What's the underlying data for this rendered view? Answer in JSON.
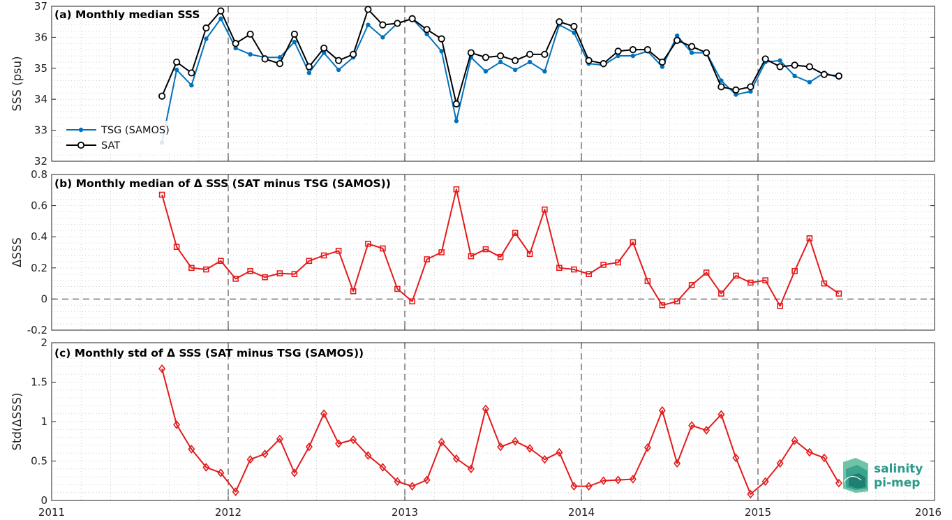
{
  "colors": {
    "tsg": "#0072BD",
    "sat": "#000000",
    "delta": "#E41A1C",
    "logo": "#2a9a8a"
  },
  "x_axis": {
    "ticks": [
      "2011",
      "2012",
      "2013",
      "2014",
      "2015",
      "2016"
    ]
  },
  "logo": {
    "line1": "salinity",
    "line2": "pi-mep"
  },
  "chart_data": [
    {
      "panel": "a",
      "type": "line",
      "title": "(a) Monthly median SSS",
      "ylabel": "SSS (psu)",
      "xlim": [
        2011,
        2016
      ],
      "ylim": [
        32,
        37
      ],
      "yticks": [
        32,
        33,
        34,
        35,
        36,
        37
      ],
      "legend": "bottom-left",
      "series": [
        {
          "name": "TSG (SAMOS)",
          "marker": "dot",
          "x": [
            2011.625,
            2011.708,
            2011.792,
            2011.875,
            2011.958,
            2012.042,
            2012.125,
            2012.208,
            2012.292,
            2012.375,
            2012.458,
            2012.542,
            2012.625,
            2012.708,
            2012.792,
            2012.875,
            2012.958,
            2013.042,
            2013.125,
            2013.208,
            2013.292,
            2013.375,
            2013.458,
            2013.542,
            2013.625,
            2013.708,
            2013.792,
            2013.875,
            2013.958,
            2014.042,
            2014.125,
            2014.208,
            2014.292,
            2014.375,
            2014.458,
            2014.542,
            2014.625,
            2014.708,
            2014.792,
            2014.875,
            2014.958,
            2015.042,
            2015.125,
            2015.208,
            2015.292,
            2015.375,
            2015.458
          ],
          "values": [
            32.6,
            34.95,
            34.45,
            35.95,
            36.6,
            35.65,
            35.45,
            35.35,
            35.35,
            35.85,
            34.85,
            35.5,
            34.95,
            35.35,
            36.4,
            36.0,
            36.45,
            36.6,
            36.1,
            35.55,
            33.3,
            35.35,
            34.9,
            35.2,
            34.95,
            35.2,
            34.9,
            36.4,
            36.15,
            35.15,
            35.1,
            35.4,
            35.4,
            35.55,
            35.05,
            36.05,
            35.5,
            35.5,
            34.6,
            34.15,
            34.25,
            35.2,
            35.25,
            34.75,
            34.55,
            34.85,
            34.7
          ]
        },
        {
          "name": "SAT",
          "marker": "circle",
          "x": [
            2011.625,
            2011.708,
            2011.792,
            2011.875,
            2011.958,
            2012.042,
            2012.125,
            2012.208,
            2012.292,
            2012.375,
            2012.458,
            2012.542,
            2012.625,
            2012.708,
            2012.792,
            2012.875,
            2012.958,
            2013.042,
            2013.125,
            2013.208,
            2013.292,
            2013.375,
            2013.458,
            2013.542,
            2013.625,
            2013.708,
            2013.792,
            2013.875,
            2013.958,
            2014.042,
            2014.125,
            2014.208,
            2014.292,
            2014.375,
            2014.458,
            2014.542,
            2014.625,
            2014.708,
            2014.792,
            2014.875,
            2014.958,
            2015.042,
            2015.125,
            2015.208,
            2015.292,
            2015.375,
            2015.458
          ],
          "values": [
            34.1,
            35.2,
            34.85,
            36.3,
            36.85,
            35.8,
            36.1,
            35.3,
            35.15,
            36.1,
            35.05,
            35.65,
            35.25,
            35.45,
            36.9,
            36.4,
            36.45,
            36.6,
            36.25,
            35.95,
            33.85,
            35.5,
            35.35,
            35.4,
            35.25,
            35.45,
            35.45,
            36.5,
            36.35,
            35.25,
            35.15,
            35.55,
            35.6,
            35.6,
            35.2,
            35.9,
            35.7,
            35.5,
            34.4,
            34.3,
            34.4,
            35.3,
            35.05,
            35.1,
            35.05,
            34.8,
            34.75
          ]
        }
      ]
    },
    {
      "panel": "b",
      "type": "line",
      "title": "(b) Monthly median of Δ SSS (SAT minus TSG (SAMOS))",
      "ylabel": "ΔSSS",
      "xlim": [
        2011,
        2016
      ],
      "ylim": [
        -0.2,
        0.8
      ],
      "yticks": [
        -0.2,
        0,
        0.2,
        0.4,
        0.6,
        0.8
      ],
      "zero_line": true,
      "series": [
        {
          "marker": "square",
          "x": [
            2011.625,
            2011.708,
            2011.792,
            2011.875,
            2011.958,
            2012.042,
            2012.125,
            2012.208,
            2012.292,
            2012.375,
            2012.458,
            2012.542,
            2012.625,
            2012.708,
            2012.792,
            2012.875,
            2012.958,
            2013.042,
            2013.125,
            2013.208,
            2013.292,
            2013.375,
            2013.458,
            2013.542,
            2013.625,
            2013.708,
            2013.792,
            2013.875,
            2013.958,
            2014.042,
            2014.125,
            2014.208,
            2014.292,
            2014.375,
            2014.458,
            2014.542,
            2014.625,
            2014.708,
            2014.792,
            2014.875,
            2014.958,
            2015.042,
            2015.125,
            2015.208,
            2015.292,
            2015.375,
            2015.458
          ],
          "values": [
            0.67,
            0.335,
            0.2,
            0.19,
            0.245,
            0.13,
            0.18,
            0.14,
            0.165,
            0.16,
            0.245,
            0.28,
            0.31,
            0.05,
            0.355,
            0.325,
            0.065,
            -0.015,
            0.255,
            0.3,
            0.705,
            0.275,
            0.32,
            0.27,
            0.425,
            0.29,
            0.575,
            0.2,
            0.19,
            0.16,
            0.22,
            0.235,
            0.365,
            0.115,
            -0.04,
            -0.015,
            0.09,
            0.17,
            0.035,
            0.15,
            0.105,
            0.12,
            -0.045,
            0.18,
            0.39,
            0.1,
            0.035
          ]
        }
      ]
    },
    {
      "panel": "c",
      "type": "line",
      "title": "(c) Monthly std of Δ SSS (SAT minus TSG (SAMOS))",
      "ylabel": "Std(ΔSSS)",
      "xlim": [
        2011,
        2016
      ],
      "ylim": [
        0,
        2
      ],
      "yticks": [
        0,
        0.5,
        1,
        1.5,
        2
      ],
      "series": [
        {
          "marker": "diamond",
          "x": [
            2011.625,
            2011.708,
            2011.792,
            2011.875,
            2011.958,
            2012.042,
            2012.125,
            2012.208,
            2012.292,
            2012.375,
            2012.458,
            2012.542,
            2012.625,
            2012.708,
            2012.792,
            2012.875,
            2012.958,
            2013.042,
            2013.125,
            2013.208,
            2013.292,
            2013.375,
            2013.458,
            2013.542,
            2013.625,
            2013.708,
            2013.792,
            2013.875,
            2013.958,
            2014.042,
            2014.125,
            2014.208,
            2014.292,
            2014.375,
            2014.458,
            2014.542,
            2014.625,
            2014.708,
            2014.792,
            2014.875,
            2014.958,
            2015.042,
            2015.125,
            2015.208,
            2015.292,
            2015.375,
            2015.458
          ],
          "values": [
            1.67,
            0.96,
            0.65,
            0.42,
            0.35,
            0.11,
            0.52,
            0.59,
            0.78,
            0.35,
            0.68,
            1.1,
            0.72,
            0.77,
            0.57,
            0.42,
            0.24,
            0.18,
            0.26,
            0.74,
            0.53,
            0.4,
            1.16,
            0.68,
            0.75,
            0.66,
            0.52,
            0.61,
            0.18,
            0.18,
            0.25,
            0.26,
            0.27,
            0.67,
            1.14,
            0.47,
            0.95,
            0.89,
            1.09,
            0.54,
            0.08,
            0.24,
            0.47,
            0.76,
            0.61,
            0.54,
            0.22
          ]
        }
      ]
    }
  ]
}
